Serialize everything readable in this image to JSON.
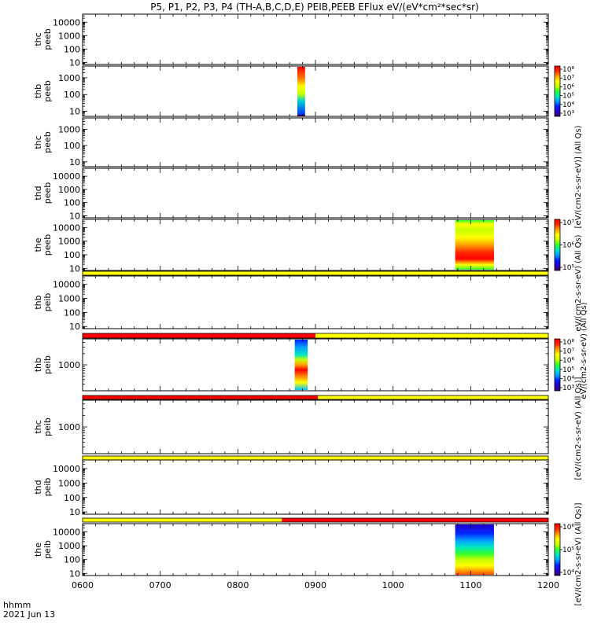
{
  "title": "P5, P1, P2, P3, P4 (TH-A,B,C,D,E) PEIB,PEEB EFlux eV/(eV*cm²*sec*sr)",
  "footer": {
    "time_label": "hhmm",
    "date_label": "2021 Jun 13"
  },
  "x_ticks": [
    "0600",
    "0700",
    "0800",
    "0900",
    "1000",
    "1100",
    "1200"
  ],
  "colorbar_labels": {
    "label_1": "[eV/(cm2-s-sr-eV)] (All Qs)",
    "label_2": "eV/(cm2-s-sr-eV) (All Qs)",
    "label_3": "eV/(cm2-s-sr-eV) (All Qs)",
    "label_4": "[eV/(cm2-s-sr-eV) (All Qs)]",
    "label_5": "[eV/(cm2-s-sr-eV) (All Qs)]"
  },
  "colors": {
    "bar_yellow": "#ffff00",
    "bar_red": "#ff0000",
    "colormap": [
      "#3c005a",
      "#2a00c8",
      "#0020ff",
      "#00a0ff",
      "#00e8c0",
      "#30ff30",
      "#c8ff00",
      "#ffff00",
      "#ffa000",
      "#ff2800",
      "#ff0000"
    ]
  },
  "chart_data": {
    "type": "heatmap",
    "x_range_hhmm": [
      "0600",
      "1200"
    ],
    "y_scale": "log",
    "panels": [
      {
        "l1": "thc",
        "l2": "peeb",
        "ytick_labels": [
          "10000",
          "1000",
          "100",
          "10"
        ],
        "yticks": [
          10000,
          1000,
          100,
          10
        ],
        "ylim": [
          7,
          40000
        ],
        "blocks": []
      },
      {
        "l1": "thb",
        "l2": "peeb",
        "ytick_labels": [
          "1000",
          "100",
          "10"
        ],
        "yticks": [
          1000,
          100,
          10
        ],
        "ylim": [
          5,
          5000
        ],
        "blocks": [
          {
            "t_start": "0846",
            "t_end": "0852",
            "stops": [
              [
                0,
                "#0028ff"
              ],
              [
                0.3,
                "#00d0d0"
              ],
              [
                0.45,
                "#c8ff00"
              ],
              [
                0.6,
                "#ffff00"
              ],
              [
                0.75,
                "#ff8000"
              ],
              [
                1,
                "#ff0000"
              ]
            ],
            "bottom_edge": "#3c005a"
          }
        ],
        "colorbar": {
          "tick_labels": [
            "10⁸",
            "10⁷",
            "10⁶",
            "10⁵",
            "10⁴",
            "10³"
          ]
        }
      },
      {
        "l1": "thc",
        "l2": "peeb",
        "ytick_labels": [
          "1000",
          "100",
          "10"
        ],
        "yticks": [
          1000,
          100,
          10
        ],
        "ylim": [
          5,
          5000
        ],
        "blocks": []
      },
      {
        "l1": "thd",
        "l2": "peeb",
        "ytick_labels": [
          "10000",
          "1000",
          "100",
          "10"
        ],
        "yticks": [
          10000,
          1000,
          100,
          10
        ],
        "ylim": [
          7,
          40000
        ],
        "blocks": []
      },
      {
        "l1": "the",
        "l2": "peeb",
        "ytick_labels": [
          "10000",
          "1000",
          "100",
          "10"
        ],
        "yticks": [
          10000,
          1000,
          100,
          10
        ],
        "ylim": [
          7,
          40000
        ],
        "blocks": [
          {
            "t_start": "1048",
            "t_end": "1118",
            "stops": [
              [
                0,
                "#30ff30"
              ],
              [
                0.1,
                "#ffff00"
              ],
              [
                0.22,
                "#ff0000"
              ],
              [
                0.35,
                "#ff2800"
              ],
              [
                0.5,
                "#ffa000"
              ],
              [
                0.65,
                "#ffff00"
              ],
              [
                0.8,
                "#c8ff00"
              ],
              [
                0.92,
                "#ffff00"
              ],
              [
                1,
                "#30ff30"
              ]
            ]
          }
        ],
        "colorbar": {
          "tick_labels": [
            "10⁷",
            "10⁶",
            "10⁵"
          ]
        }
      },
      {
        "l1": "thb",
        "l2": "peib",
        "ytick_labels": [
          "10000",
          "1000",
          "100",
          "10"
        ],
        "yticks": [
          10000,
          1000,
          100,
          10
        ],
        "ylim": [
          7,
          40000
        ],
        "top_bar": [
          [
            "0600",
            "1200",
            "#ffff00"
          ]
        ],
        "blocks": []
      },
      {
        "l1": "thb",
        "l2": "peib",
        "ytick_labels": [
          "1000"
        ],
        "yticks": [
          1000
        ],
        "ylim": [
          200,
          5000
        ],
        "top_bar": [
          [
            "0600",
            "0900",
            "#ff0000"
          ],
          [
            "0900",
            "1200",
            "#ffff00"
          ]
        ],
        "blocks": [
          {
            "t_start": "0844",
            "t_end": "0854",
            "stops": [
              [
                0,
                "#00c0ff"
              ],
              [
                0.15,
                "#ffff00"
              ],
              [
                0.28,
                "#ff8000"
              ],
              [
                0.4,
                "#ff0000"
              ],
              [
                0.5,
                "#ffa000"
              ],
              [
                0.6,
                "#c8ff00"
              ],
              [
                0.7,
                "#00e8c0"
              ],
              [
                0.85,
                "#00a0ff"
              ],
              [
                1,
                "#0020ff"
              ]
            ]
          }
        ],
        "colorbar": {
          "tick_labels": [
            "10⁸",
            "10⁷",
            "10⁶",
            "10⁵",
            "10⁴",
            "10³"
          ]
        }
      },
      {
        "l1": "thc",
        "l2": "peib",
        "ytick_labels": [
          "1000"
        ],
        "yticks": [
          1000
        ],
        "ylim": [
          200,
          5000
        ],
        "top_bar": [
          [
            "0600",
            "0902",
            "#ff0000"
          ],
          [
            "0902",
            "1200",
            "#ffff00"
          ]
        ],
        "blocks": []
      },
      {
        "l1": "thd",
        "l2": "peib",
        "ytick_labels": [
          "10000",
          "1000",
          "100",
          "10"
        ],
        "yticks": [
          10000,
          1000,
          100,
          10
        ],
        "ylim": [
          7,
          40000
        ],
        "top_bar": [
          [
            "0600",
            "1200",
            "#ffff00"
          ]
        ],
        "blocks": []
      },
      {
        "l1": "the",
        "l2": "peib",
        "ytick_labels": [
          "10000",
          "1000",
          "100",
          "10"
        ],
        "yticks": [
          10000,
          1000,
          100,
          10
        ],
        "ylim": [
          7,
          40000
        ],
        "top_bar": [
          [
            "0600",
            "0834",
            "#ffff00"
          ],
          [
            "0834",
            "1200",
            "#ff0000"
          ]
        ],
        "blocks": [
          {
            "t_start": "1048",
            "t_end": "1118",
            "stops": [
              [
                0,
                "#ff4000"
              ],
              [
                0.08,
                "#ffa000"
              ],
              [
                0.18,
                "#ffff00"
              ],
              [
                0.3,
                "#c8ff00"
              ],
              [
                0.42,
                "#30ff30"
              ],
              [
                0.55,
                "#00e8c0"
              ],
              [
                0.68,
                "#00a0ff"
              ],
              [
                0.82,
                "#0028ff"
              ],
              [
                1,
                "#2000c8"
              ]
            ]
          }
        ],
        "colorbar": {
          "tick_labels": [
            "10⁶",
            "10⁵",
            "10⁴"
          ]
        }
      }
    ]
  }
}
